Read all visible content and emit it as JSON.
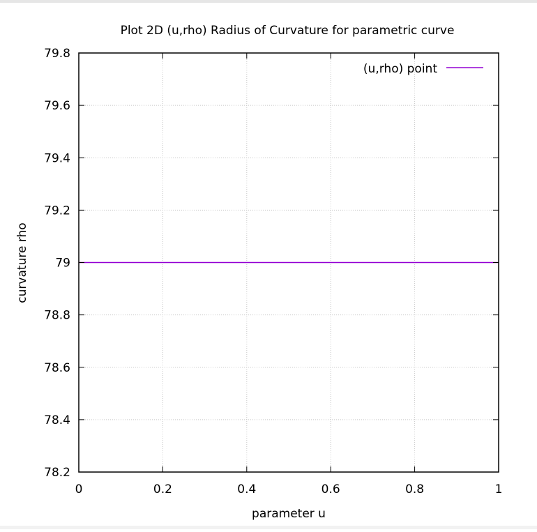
{
  "chart_data": {
    "type": "line",
    "title": "Plot 2D (u,rho) Radius of Curvature for parametric curve",
    "xlabel": "parameter u",
    "ylabel": "curvature rho",
    "xlim": [
      0,
      1
    ],
    "ylim": [
      78.2,
      79.8
    ],
    "xticks": [
      0,
      0.2,
      0.4,
      0.6,
      0.8,
      1
    ],
    "xtick_labels": [
      "0",
      "0.2",
      "0.4",
      "0.6",
      "0.8",
      "1"
    ],
    "yticks": [
      78.2,
      78.4,
      78.6,
      78.8,
      79,
      79.2,
      79.4,
      79.6,
      79.8
    ],
    "ytick_labels": [
      "78.2",
      "78.4",
      "78.6",
      "78.8",
      "79",
      "79.2",
      "79.4",
      "79.6",
      "79.8"
    ],
    "grid": true,
    "legend_position": "top-right",
    "series": [
      {
        "name": "(u,rho) point",
        "color": "#9400d3",
        "x": [
          0,
          1
        ],
        "y": [
          79,
          79
        ]
      }
    ]
  }
}
